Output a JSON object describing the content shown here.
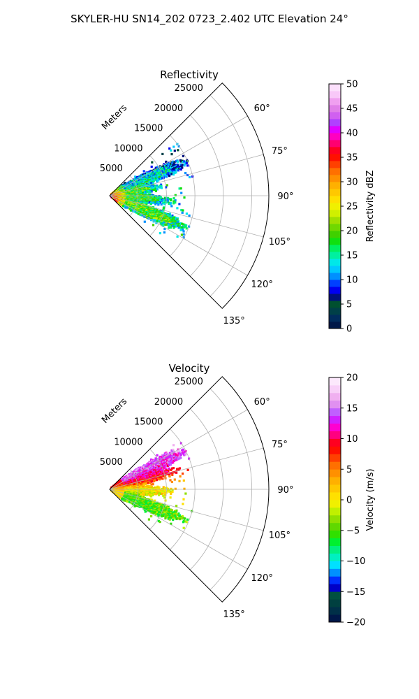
{
  "suptitle": "SKYLER-HU  SN14_202  0723_2.402 UTC Elevation 24°",
  "chart_data": [
    {
      "type": "heatmap",
      "projection": "polar-sector",
      "title": "Reflectivity",
      "radial_label": "Meters",
      "radial_ticks": [
        5000,
        10000,
        15000,
        20000,
        25000
      ],
      "radial_tick_labels": [
        "5000",
        "10000",
        "15000",
        "20000",
        "25000"
      ],
      "r_max": 28000,
      "theta_range_deg": [
        45,
        135
      ],
      "theta_ticks": [
        60,
        75,
        90,
        105,
        120,
        135
      ],
      "theta_tick_labels": [
        "60°",
        "75°",
        "90°",
        "105°",
        "120°",
        "135°"
      ],
      "grid": true,
      "data_extent": {
        "r_range": [
          0,
          15000
        ],
        "theta_range": [
          50,
          128
        ],
        "lobes": [
          {
            "theta_center": 66,
            "r_max": 15000,
            "dominant_value": 13
          },
          {
            "theta_center": 80,
            "r_max": 9000,
            "dominant_value": 20
          },
          {
            "theta_center": 95,
            "r_max": 11000,
            "dominant_value": 18
          },
          {
            "theta_center": 113,
            "r_max": 15000,
            "dominant_value": 20
          }
        ],
        "near_range_max": {
          "r_range": [
            0,
            2000
          ],
          "value": 38
        }
      },
      "colorbar": {
        "label": "Reflectivity dBZ",
        "range": [
          0,
          50
        ],
        "ticks": [
          0,
          5,
          10,
          15,
          20,
          25,
          30,
          35,
          40,
          45,
          50
        ],
        "tick_labels": [
          "0",
          "5",
          "10",
          "15",
          "20",
          "25",
          "30",
          "35",
          "40",
          "45",
          "50"
        ],
        "colors": [
          "#001848",
          "#002c5c",
          "#004048",
          "#005030",
          "#00107c",
          "#0000f0",
          "#0040ff",
          "#0090ff",
          "#00c8ff",
          "#00e8e8",
          "#00f0a0",
          "#00f060",
          "#10e010",
          "#40d000",
          "#70d800",
          "#a0e000",
          "#d0f000",
          "#f0f000",
          "#ffe000",
          "#ffc800",
          "#ffb000",
          "#ff9000",
          "#ff7000",
          "#ff4000",
          "#ff1000",
          "#ff0020",
          "#ff0070",
          "#ff00c0",
          "#e000ff",
          "#b040ff",
          "#d060f0",
          "#e080e8",
          "#f0a0f0",
          "#f8c8f8",
          "#fce0fc"
        ]
      }
    },
    {
      "type": "heatmap",
      "projection": "polar-sector",
      "title": "Velocity",
      "radial_label": "Meters",
      "radial_ticks": [
        5000,
        10000,
        15000,
        20000,
        25000
      ],
      "radial_tick_labels": [
        "5000",
        "10000",
        "15000",
        "20000",
        "25000"
      ],
      "r_max": 28000,
      "theta_range_deg": [
        45,
        135
      ],
      "theta_ticks": [
        60,
        75,
        90,
        105,
        120,
        135
      ],
      "theta_tick_labels": [
        "60°",
        "75°",
        "90°",
        "105°",
        "120°",
        "135°"
      ],
      "grid": true,
      "data_extent": {
        "r_range": [
          0,
          15000
        ],
        "theta_range": [
          50,
          128
        ],
        "lobes": [
          {
            "theta_center": 63,
            "r_max": 15000,
            "dominant_value": 15
          },
          {
            "theta_center": 74,
            "r_max": 12000,
            "dominant_value": 8
          },
          {
            "theta_center": 92,
            "r_max": 11000,
            "dominant_value": 0
          },
          {
            "theta_center": 112,
            "r_max": 14000,
            "dominant_value": -5
          }
        ]
      },
      "colorbar": {
        "label": "Velocity (m/s)",
        "range": [
          -20,
          20
        ],
        "ticks": [
          -20,
          -15,
          -10,
          -5,
          0,
          5,
          10,
          15,
          20
        ],
        "tick_labels": [
          "−20",
          "−15",
          "−10",
          "−5",
          "0",
          "5",
          "10",
          "15",
          "20"
        ],
        "colors": [
          "#001848",
          "#003048",
          "#004040",
          "#005040",
          "#0000c8",
          "#0030ff",
          "#0090ff",
          "#00e0ff",
          "#00f0c0",
          "#00f080",
          "#00f030",
          "#30e000",
          "#60d800",
          "#90e000",
          "#c0f000",
          "#f0f000",
          "#ffe000",
          "#ffc800",
          "#ffb000",
          "#ff9000",
          "#ff7000",
          "#ff4000",
          "#ff1000",
          "#ff0020",
          "#ff0080",
          "#ff00d0",
          "#d020ff",
          "#c060ff",
          "#e090f0",
          "#f0b0f0",
          "#f8d0f8",
          "#fce8fc"
        ]
      }
    }
  ]
}
